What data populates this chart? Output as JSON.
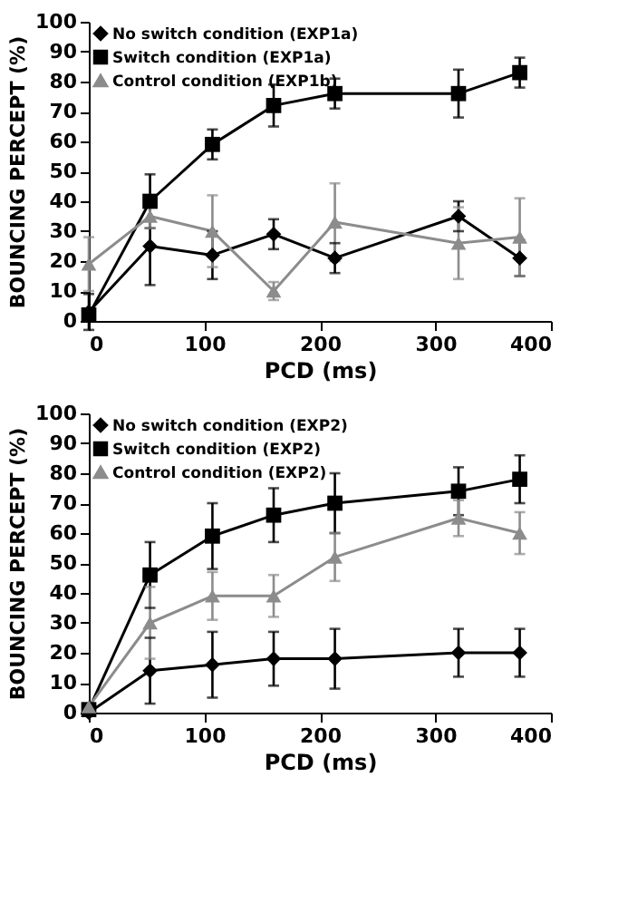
{
  "chart_data": [
    {
      "type": "line",
      "xlabel": "PCD (ms)",
      "ylabel": "BOUNCING PERCEPT (%)",
      "x": [
        0,
        53,
        107,
        160,
        213,
        320,
        373
      ],
      "xlim": [
        0,
        400
      ],
      "xticks": [
        0,
        100,
        200,
        300,
        400
      ],
      "ylim": [
        0,
        100
      ],
      "yticks": [
        0,
        10,
        20,
        30,
        40,
        50,
        60,
        70,
        80,
        90,
        100
      ],
      "grid": false,
      "legend": "top left",
      "line_style": "solid",
      "series": [
        {
          "name": "No switch condition (EXP1a)",
          "color": "#000000",
          "marker": "diamond",
          "values": [
            3,
            25,
            22,
            29,
            21,
            35,
            21
          ],
          "errors": [
            6,
            13,
            8,
            5,
            5,
            5,
            6
          ]
        },
        {
          "name": "Switch condition (EXP1a)",
          "color": "#000000",
          "marker": "square",
          "values": [
            2,
            40,
            59,
            72,
            76,
            76,
            83
          ],
          "errors": [
            2,
            9,
            5,
            7,
            5,
            8,
            5
          ]
        },
        {
          "name": "Control condition (EXP1b)",
          "color": "#8c8c8c",
          "marker": "triangle",
          "values": [
            19,
            35,
            30,
            10,
            33,
            26,
            28
          ],
          "errors": [
            9,
            4,
            12,
            3,
            13,
            12,
            13
          ]
        }
      ]
    },
    {
      "type": "line",
      "xlabel": "PCD (ms)",
      "ylabel": "BOUNCING PERCEPT (%)",
      "x": [
        0,
        53,
        107,
        160,
        213,
        320,
        373
      ],
      "xlim": [
        0,
        400
      ],
      "xticks": [
        0,
        100,
        200,
        300,
        400
      ],
      "ylim": [
        0,
        100
      ],
      "yticks": [
        0,
        10,
        20,
        30,
        40,
        50,
        60,
        70,
        80,
        90,
        100
      ],
      "grid": false,
      "legend": "top left",
      "line_style": "solid",
      "series": [
        {
          "name": "No switch condition (EXP2)",
          "color": "#000000",
          "marker": "diamond",
          "values": [
            0,
            14,
            16,
            18,
            18,
            20,
            20
          ],
          "errors": [
            null,
            11,
            11,
            9,
            10,
            8,
            8
          ]
        },
        {
          "name": "Switch condition (EXP2)",
          "color": "#000000",
          "marker": "square",
          "values": [
            1,
            46,
            59,
            66,
            70,
            74,
            78
          ],
          "errors": [
            null,
            11,
            11,
            9,
            10,
            8,
            8
          ]
        },
        {
          "name": "Control condition (EXP2)",
          "color": "#8c8c8c",
          "marker": "triangle",
          "values": [
            2,
            30,
            39,
            39,
            52,
            65,
            60
          ],
          "errors": [
            null,
            12,
            8,
            7,
            8,
            6,
            7
          ]
        }
      ]
    }
  ]
}
